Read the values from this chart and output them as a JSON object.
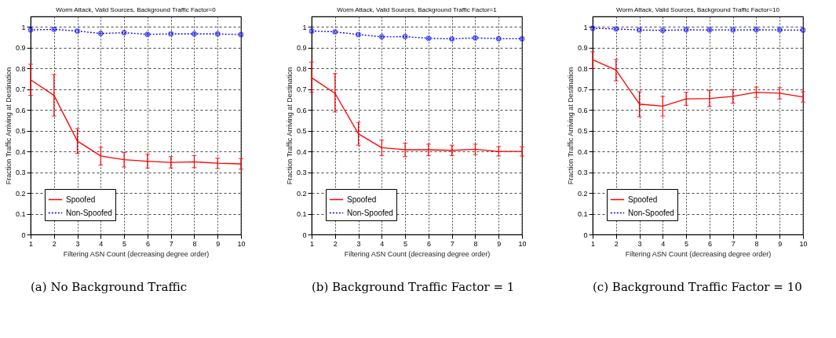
{
  "chart_data": [
    {
      "type": "line",
      "title": "Worm Attack, Valid Sources, Background Traffic Factor=0",
      "xlabel": "Filtering ASN Count (decreasing degree order)",
      "ylabel": "Fraction Traffic Arriving at Destination",
      "annotations": [
        "(a) No Background Traffic"
      ],
      "x": [
        1,
        2,
        3,
        4,
        5,
        6,
        7,
        8,
        9,
        10
      ],
      "xlim": [
        1,
        10
      ],
      "xticks": [
        1,
        2,
        3,
        4,
        5,
        6,
        7,
        8,
        9,
        10
      ],
      "ylim": [
        0,
        1.05
      ],
      "yticks": [
        0,
        0.1,
        0.2,
        0.3,
        0.4,
        0.5,
        0.6,
        0.7,
        0.8,
        0.9,
        1
      ],
      "grid": true,
      "legend": "bottom left",
      "series": [
        {
          "name": "Spoofed",
          "color": "#ff0000",
          "line_style": "solid",
          "marker": "none",
          "values": [
            0.745,
            0.67,
            0.45,
            0.378,
            0.36,
            0.353,
            0.347,
            0.35,
            0.343,
            0.34
          ],
          "errors": [
            [
              0.67,
              0.82
            ],
            [
              0.57,
              0.77
            ],
            [
              0.39,
              0.51
            ],
            [
              0.335,
              0.42
            ],
            [
              0.325,
              0.395
            ],
            [
              0.32,
              0.387
            ],
            [
              0.32,
              0.375
            ],
            [
              0.322,
              0.38
            ],
            [
              0.318,
              0.368
            ],
            [
              0.315,
              0.365
            ]
          ]
        },
        {
          "name": "Non-Spoofed",
          "color": "#0000ff",
          "line_style": "dotted",
          "marker": "cross",
          "values": [
            0.985,
            0.988,
            0.98,
            0.968,
            0.972,
            0.964,
            0.966,
            0.966,
            0.966,
            0.963
          ]
        }
      ]
    },
    {
      "type": "line",
      "title": "Worm Attack, Valid Sources, Background Traffic Factor=1",
      "xlabel": "Filtering ASN Count (decreasing degree order)",
      "ylabel": "Fraction Traffic Arriving at Destination",
      "annotations": [
        "(b) Background Traffic Factor = 1"
      ],
      "x": [
        1,
        2,
        3,
        4,
        5,
        6,
        7,
        8,
        9,
        10
      ],
      "xlim": [
        1,
        10
      ],
      "xticks": [
        1,
        2,
        3,
        4,
        5,
        6,
        7,
        8,
        9,
        10
      ],
      "ylim": [
        0,
        1.05
      ],
      "yticks": [
        0,
        0.1,
        0.2,
        0.3,
        0.4,
        0.5,
        0.6,
        0.7,
        0.8,
        0.9,
        1
      ],
      "grid": true,
      "legend": "bottom left",
      "series": [
        {
          "name": "Spoofed",
          "color": "#ff0000",
          "line_style": "solid",
          "marker": "none",
          "values": [
            0.755,
            0.68,
            0.485,
            0.418,
            0.408,
            0.408,
            0.405,
            0.41,
            0.4,
            0.4
          ],
          "errors": [
            [
              0.685,
              0.83
            ],
            [
              0.59,
              0.775
            ],
            [
              0.43,
              0.54
            ],
            [
              0.38,
              0.455
            ],
            [
              0.375,
              0.44
            ],
            [
              0.38,
              0.435
            ],
            [
              0.38,
              0.43
            ],
            [
              0.385,
              0.435
            ],
            [
              0.378,
              0.423
            ],
            [
              0.378,
              0.423
            ]
          ]
        },
        {
          "name": "Non-Spoofed",
          "color": "#0000ff",
          "line_style": "dotted",
          "marker": "cross",
          "values": [
            0.98,
            0.976,
            0.963,
            0.952,
            0.953,
            0.945,
            0.942,
            0.947,
            0.943,
            0.943
          ]
        }
      ]
    },
    {
      "type": "line",
      "title": "Worm Attack, Valid Sources, Background Traffic Factor=10",
      "xlabel": "Filtering ASN Count (decreasing degree order)",
      "ylabel": "Fraction Traffic Arriving at Destination",
      "annotations": [
        "(c) Background Traffic Factor = 10"
      ],
      "x": [
        1,
        2,
        3,
        4,
        5,
        6,
        7,
        8,
        9,
        10
      ],
      "xlim": [
        1,
        10
      ],
      "xticks": [
        1,
        2,
        3,
        4,
        5,
        6,
        7,
        8,
        9,
        10
      ],
      "ylim": [
        0,
        1.05
      ],
      "yticks": [
        0,
        0.1,
        0.2,
        0.3,
        0.4,
        0.5,
        0.6,
        0.7,
        0.8,
        0.9,
        1
      ],
      "grid": true,
      "legend": "bottom left",
      "series": [
        {
          "name": "Spoofed",
          "color": "#ff0000",
          "line_style": "solid",
          "marker": "none",
          "values": [
            0.842,
            0.792,
            0.628,
            0.618,
            0.653,
            0.655,
            0.665,
            0.685,
            0.68,
            0.662
          ],
          "errors": [
            [
              0.8,
              0.88
            ],
            [
              0.74,
              0.843
            ],
            [
              0.567,
              0.688
            ],
            [
              0.57,
              0.665
            ],
            [
              0.622,
              0.685
            ],
            [
              0.617,
              0.693
            ],
            [
              0.632,
              0.697
            ],
            [
              0.66,
              0.71
            ],
            [
              0.653,
              0.707
            ],
            [
              0.638,
              0.687
            ]
          ]
        },
        {
          "name": "Non-Spoofed",
          "color": "#0000ff",
          "line_style": "dotted",
          "marker": "cross",
          "values": [
            0.993,
            0.99,
            0.985,
            0.983,
            0.986,
            0.985,
            0.985,
            0.986,
            0.985,
            0.984
          ]
        }
      ]
    }
  ]
}
